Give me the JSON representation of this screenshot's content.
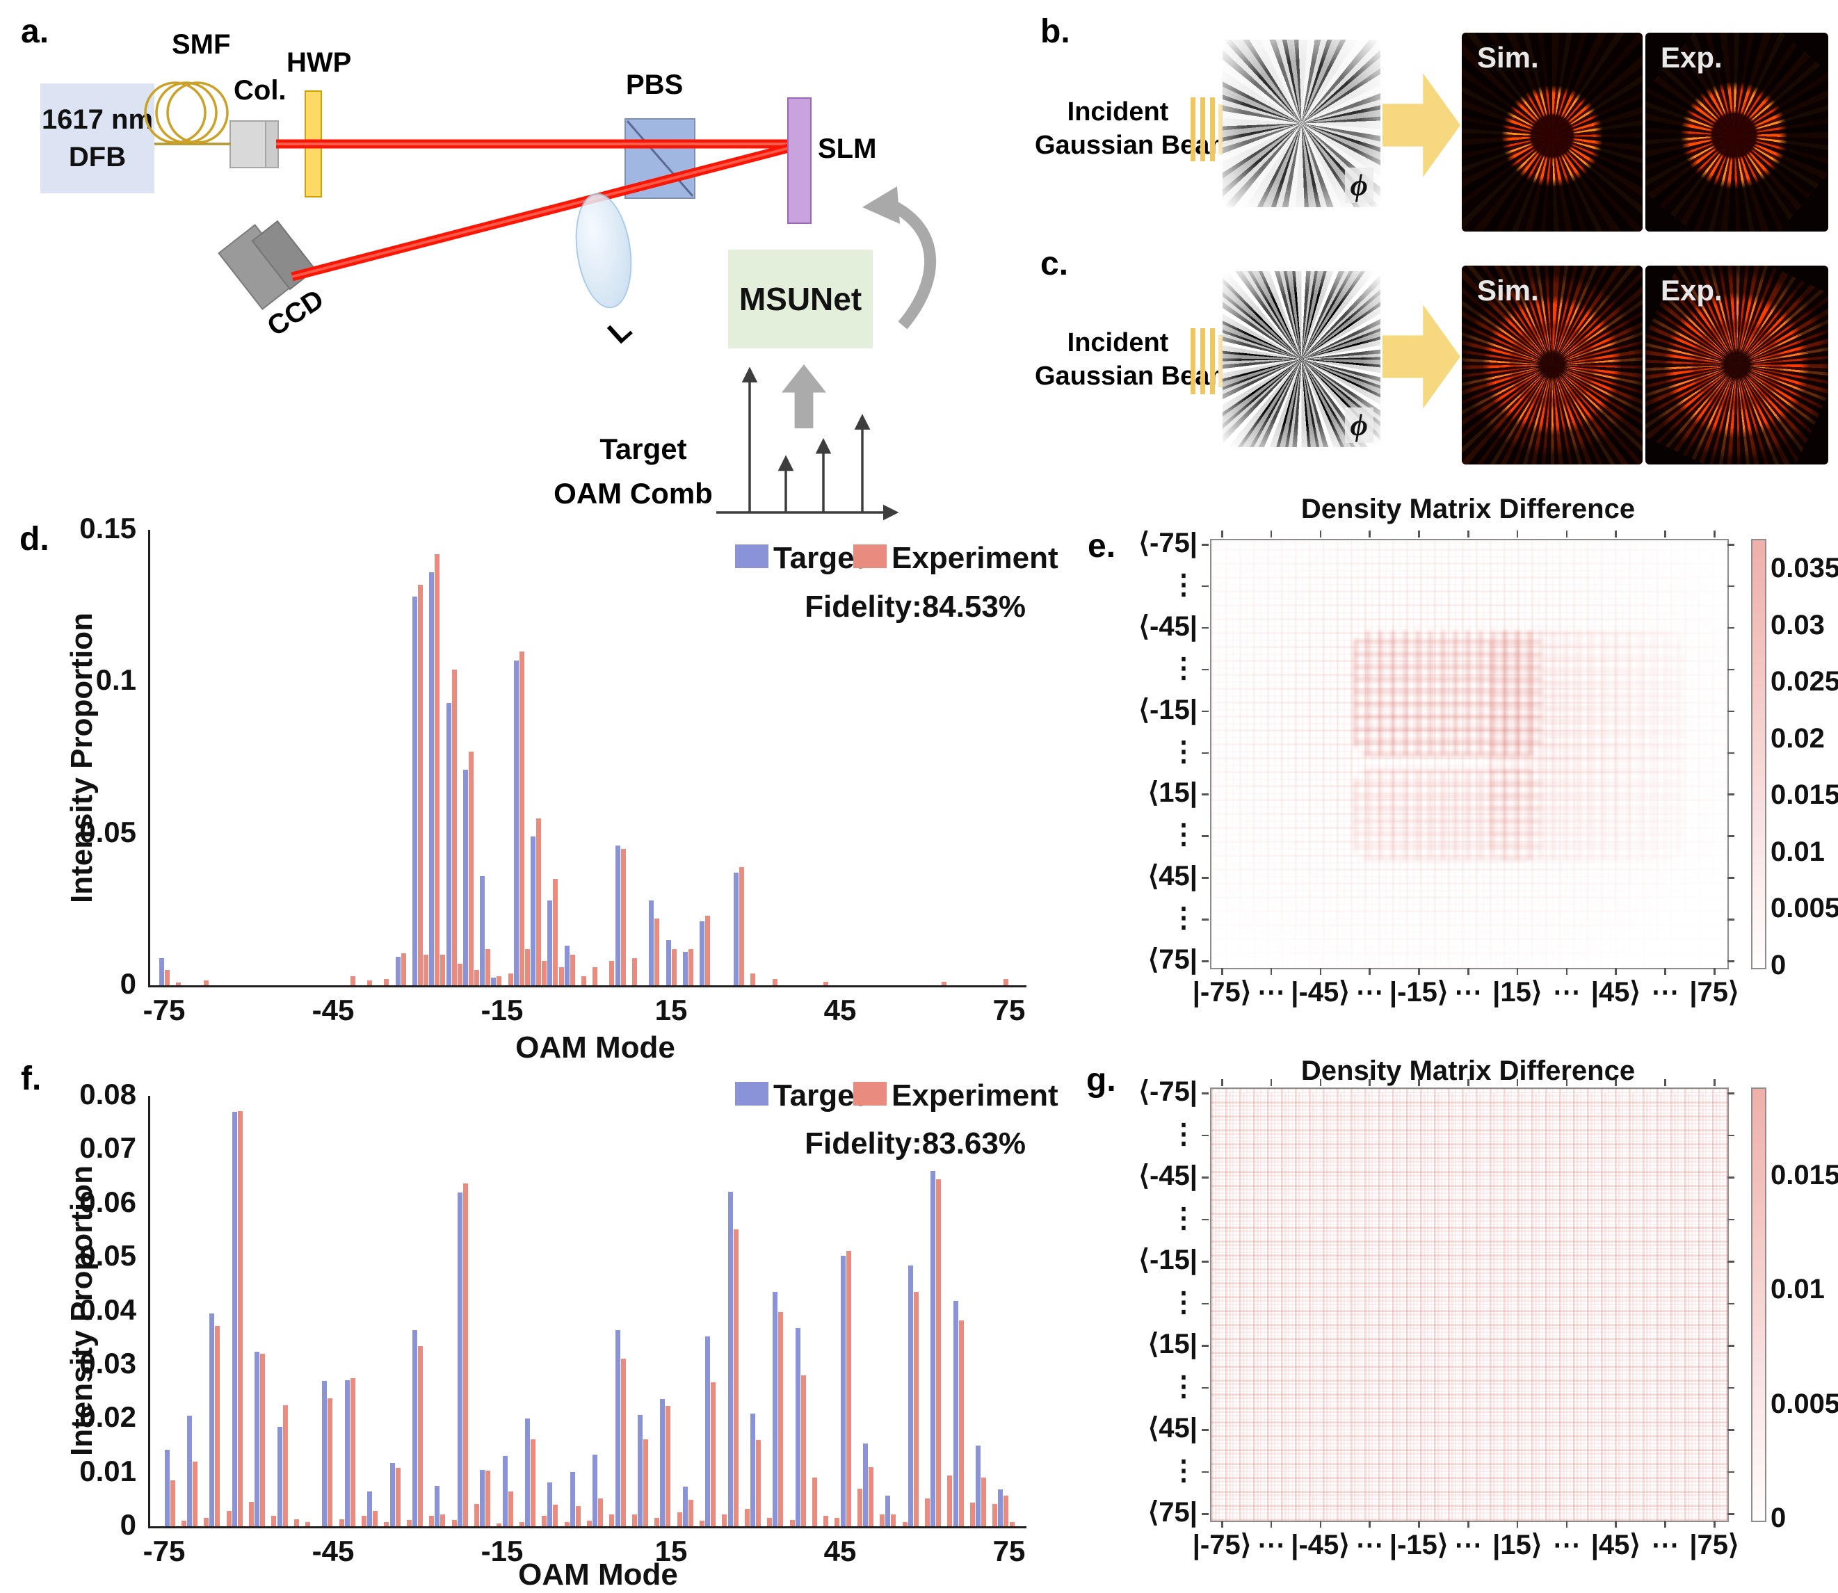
{
  "panels": {
    "a": {
      "label": "a.",
      "dfb_line1": "1617 nm",
      "dfb_line2": "DFB",
      "smf": "SMF",
      "col": "Col.",
      "hwp": "HWP",
      "pbs": "PBS",
      "slm": "SLM",
      "ccd": "CCD",
      "lens": "L",
      "msunet": "MSUNet",
      "target_line1": "Target",
      "target_line2": "OAM Comb",
      "comb_sketch": {
        "arrow_heights_rel": [
          1.0,
          0.38,
          0.5,
          0.67
        ]
      }
    },
    "b": {
      "label": "b.",
      "incident_line1": "Incident",
      "incident_line2": "Gaussian Beam",
      "phi": "ϕ",
      "sim": "Sim.",
      "exp": "Exp."
    },
    "c": {
      "label": "c.",
      "incident_line1": "Incident",
      "incident_line2": "Gaussian Beam",
      "phi": "ϕ",
      "sim": "Sim.",
      "exp": "Exp."
    },
    "d": {
      "label": "d."
    },
    "e": {
      "label": "e."
    },
    "f": {
      "label": "f."
    },
    "g": {
      "label": "g."
    }
  },
  "colors": {
    "target_blue": "#8b93d8",
    "experiment_red": "#e98b7e",
    "heatmap_pink_max": "#eeb0aa",
    "beam_red": "#fa1505",
    "fiber_gold": "#c9a227",
    "hwp_yellow": "#ffd966",
    "pbs_blue": "#8faadc",
    "slm_purple": "#c9a3dc",
    "msunet_green": "#e3efda",
    "dfb_lavender": "#dce3f2",
    "arrow_yellow": "#f6d87f",
    "arrow_gray": "#ababab"
  },
  "chart_data": [
    {
      "id": "d",
      "type": "bar",
      "xlabel": "OAM Mode",
      "ylabel": "Intensity Proportion",
      "legend": [
        "Target",
        "Experiment"
      ],
      "legend_position": "top-right",
      "grid": false,
      "fidelity": "Fidelity:84.53%",
      "ylim": [
        0,
        0.15
      ],
      "yticks": [
        0,
        0.05,
        0.1,
        0.15
      ],
      "xticks": [
        -75,
        -45,
        -15,
        15,
        45,
        75
      ],
      "bar_format": [
        "oam_mode",
        "target",
        "experiment"
      ],
      "bars": [
        [
          -75,
          0.009,
          0.005
        ],
        [
          -73,
          0,
          0.001
        ],
        [
          -68,
          0,
          0.0015
        ],
        [
          -42,
          0,
          0.003
        ],
        [
          -39,
          0,
          0.0015
        ],
        [
          -36,
          0,
          0.002
        ],
        [
          -33,
          0.0095,
          0.0105
        ],
        [
          -31,
          0,
          0.002
        ],
        [
          -30,
          0.128,
          0.132
        ],
        [
          -29,
          0,
          0.01
        ],
        [
          -27,
          0.136,
          0.142
        ],
        [
          -26,
          0,
          0.01
        ],
        [
          -24,
          0.093,
          0.104
        ],
        [
          -23,
          0,
          0.007
        ],
        [
          -21,
          0.071,
          0.077
        ],
        [
          -20,
          0,
          0.005
        ],
        [
          -18,
          0.036,
          0.012
        ],
        [
          -16,
          0.0025,
          0.003
        ],
        [
          -14,
          0,
          0.004
        ],
        [
          -12,
          0.107,
          0.11
        ],
        [
          -11,
          0,
          0.012
        ],
        [
          -9,
          0.049,
          0.055
        ],
        [
          -8,
          0,
          0.008
        ],
        [
          -6,
          0.028,
          0.035
        ],
        [
          -5,
          0,
          0.006
        ],
        [
          -3,
          0.013,
          0.01
        ],
        [
          -1,
          0,
          0.003
        ],
        [
          1,
          0,
          0.006
        ],
        [
          4,
          0,
          0.008
        ],
        [
          6,
          0.046,
          0.045
        ],
        [
          8,
          0,
          0.009
        ],
        [
          12,
          0.028,
          0.022
        ],
        [
          15,
          0.015,
          0.012
        ],
        [
          18,
          0.011,
          0.012
        ],
        [
          21,
          0.021,
          0.023
        ],
        [
          27,
          0.037,
          0.039
        ],
        [
          29,
          0,
          0.004
        ],
        [
          33,
          0,
          0.002
        ],
        [
          42,
          0,
          0.0012
        ],
        [
          63,
          0,
          0.0012
        ],
        [
          74,
          0,
          0.002
        ]
      ]
    },
    {
      "id": "e",
      "type": "heatmap",
      "title": "Density Matrix Difference",
      "rows": [
        "⟨-75|",
        "⋮",
        "⟨-45|",
        "⋮",
        "⟨-15|",
        "⋮",
        "⟨15|",
        "⋮",
        "⟨45|",
        "⋮",
        "⟨75|"
      ],
      "cols": [
        "|-75⟩",
        "⋯",
        "|-45⟩",
        "⋯",
        "|-15⟩",
        "⋯",
        "|15⟩",
        "⋯",
        "|45⟩",
        "⋯",
        "|75⟩"
      ],
      "colorbar_ticks": [
        0.035,
        0.03,
        0.025,
        0.02,
        0.015,
        0.01,
        0.005,
        0
      ],
      "colorbar_range": [
        0,
        0.0377
      ],
      "pattern_note": "faint pink interference grid, strongest around rows ⟨-25|…⟨25| and columns |-25⟩…|35⟩"
    },
    {
      "id": "f",
      "type": "bar",
      "xlabel": "OAM Mode",
      "ylabel": "Intensity Proportion",
      "legend": [
        "Target",
        "Experiment"
      ],
      "legend_position": "top-right",
      "grid": false,
      "fidelity": "Fidelity:83.63%",
      "ylim": [
        0,
        0.08
      ],
      "yticks": [
        0,
        0.01,
        0.02,
        0.03,
        0.04,
        0.05,
        0.06,
        0.07,
        0.08
      ],
      "xticks": [
        -75,
        -45,
        -15,
        15,
        45,
        75
      ],
      "bar_format": [
        "oam_mode",
        "target",
        "experiment"
      ],
      "bars": [
        [
          -75,
          0,
          0.0005
        ],
        [
          -74,
          0.0142,
          0.0085
        ],
        [
          -72,
          0,
          0.001
        ],
        [
          -70,
          0.0205,
          0.012
        ],
        [
          -68,
          0,
          0.0015
        ],
        [
          -66,
          0.0395,
          0.0372
        ],
        [
          -64,
          0,
          0.0028
        ],
        [
          -62,
          0.077,
          0.0772
        ],
        [
          -60,
          0,
          0.0045
        ],
        [
          -58,
          0.0325,
          0.032
        ],
        [
          -56,
          0,
          0.002
        ],
        [
          -54,
          0.0185,
          0.0225
        ],
        [
          -52,
          0,
          0.0013
        ],
        [
          -50,
          0,
          0.0008
        ],
        [
          -46,
          0.027,
          0.0238
        ],
        [
          -44,
          0,
          0.0013
        ],
        [
          -42,
          0.0272,
          0.0275
        ],
        [
          -40,
          0,
          0.002
        ],
        [
          -38,
          0.0065,
          0.0028
        ],
        [
          -36,
          0,
          0.0008
        ],
        [
          -34,
          0.0118,
          0.0108
        ],
        [
          -32,
          0,
          0.0012
        ],
        [
          -30,
          0.0365,
          0.0335
        ],
        [
          -28,
          0,
          0.002
        ],
        [
          -26,
          0.0075,
          0.0022
        ],
        [
          -24,
          0,
          0.0012
        ],
        [
          -22,
          0.062,
          0.0637
        ],
        [
          -20,
          0,
          0.0042
        ],
        [
          -18,
          0.0105,
          0.0103
        ],
        [
          -16,
          0,
          0.0005
        ],
        [
          -14,
          0.013,
          0.0065
        ],
        [
          -12,
          0,
          0.0008
        ],
        [
          -10,
          0.02,
          0.0162
        ],
        [
          -8,
          0,
          0.002
        ],
        [
          -6,
          0.0081,
          0.004
        ],
        [
          -4,
          0,
          0.0008
        ],
        [
          -2,
          0.0101,
          0.0037
        ],
        [
          0,
          0,
          0.001
        ],
        [
          2,
          0.0133,
          0.0052
        ],
        [
          4,
          0,
          0.0022
        ],
        [
          6,
          0.0364,
          0.0312
        ],
        [
          8,
          0,
          0.0022
        ],
        [
          10,
          0.0207,
          0.0162
        ],
        [
          12,
          0,
          0.0015
        ],
        [
          14,
          0.0237,
          0.0224
        ],
        [
          16,
          0,
          0.0026
        ],
        [
          18,
          0.0074,
          0.0049
        ],
        [
          20,
          0,
          0.001
        ],
        [
          22,
          0.0353,
          0.0268
        ],
        [
          24,
          0,
          0.0022
        ],
        [
          26,
          0.0622,
          0.0552
        ],
        [
          28,
          0,
          0.0032
        ],
        [
          30,
          0.021,
          0.016
        ],
        [
          32,
          0,
          0.0015
        ],
        [
          34,
          0.0436,
          0.0398
        ],
        [
          36,
          0,
          0.0012
        ],
        [
          38,
          0.0368,
          0.028
        ],
        [
          40,
          0,
          0.009
        ],
        [
          42,
          0,
          0.002
        ],
        [
          44,
          0,
          0.0015
        ],
        [
          46,
          0.0503,
          0.0512
        ],
        [
          48,
          0,
          0.007
        ],
        [
          50,
          0.0154,
          0.011
        ],
        [
          52,
          0,
          0.0022
        ],
        [
          54,
          0.0057,
          0.0022
        ],
        [
          56,
          0,
          0.0008
        ],
        [
          58,
          0.0485,
          0.0435
        ],
        [
          60,
          0,
          0.0052
        ],
        [
          62,
          0.0661,
          0.0645
        ],
        [
          64,
          0,
          0.0095
        ],
        [
          66,
          0.0419,
          0.0383
        ],
        [
          68,
          0,
          0.0044
        ],
        [
          70,
          0.015,
          0.009
        ],
        [
          72,
          0,
          0.0042
        ],
        [
          74,
          0.0069,
          0.0057
        ],
        [
          75,
          0,
          0.0008
        ]
      ]
    },
    {
      "id": "g",
      "type": "heatmap",
      "title": "Density Matrix Difference",
      "rows": [
        "⟨-75|",
        "⋮",
        "⟨-45|",
        "⋮",
        "⟨-15|",
        "⋮",
        "⟨15|",
        "⋮",
        "⟨45|",
        "⋮",
        "⟨75|"
      ],
      "cols": [
        "|-75⟩",
        "⋯",
        "|-45⟩",
        "⋯",
        "|-15⟩",
        "⋯",
        "|15⟩",
        "⋯",
        "|45⟩",
        "⋯",
        "|75⟩"
      ],
      "colorbar_ticks": [
        0.015,
        0.01,
        0.005,
        0
      ],
      "colorbar_range": [
        0,
        0.0189
      ],
      "pattern_note": "uniform faint pink interference grid across the entire matrix"
    }
  ]
}
